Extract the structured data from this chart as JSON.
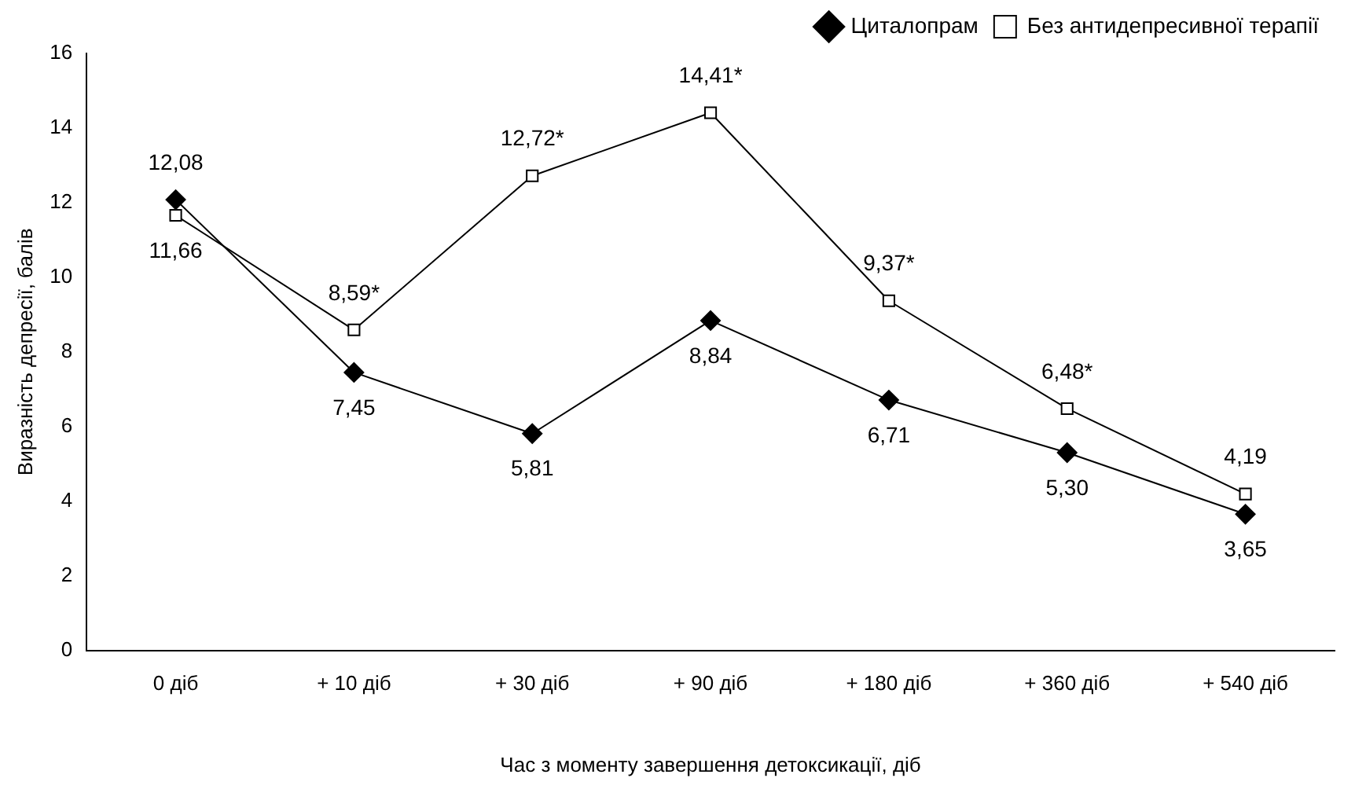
{
  "chart_data": {
    "type": "line",
    "xlabel": "Час з моменту завершення детоксикації, діб",
    "ylabel": "Виразність депресії, балів",
    "categories": [
      "0 діб",
      "+ 10 діб",
      "+ 30 діб",
      "+ 90 діб",
      "+ 180 діб",
      "+ 360 діб",
      "+ 540 діб"
    ],
    "series": [
      {
        "name": "Циталопрам",
        "color": "#000000",
        "marker": "diamond",
        "values": [
          12.08,
          7.45,
          5.81,
          8.84,
          6.71,
          5.3,
          3.65
        ],
        "value_labels": [
          "12,08",
          "7,45",
          "5,81",
          "8,84",
          "6,71",
          "5,30",
          "3,65"
        ]
      },
      {
        "name": "Без антидепресивної терапії",
        "color": "#000000",
        "marker": "square",
        "values": [
          11.66,
          8.59,
          12.72,
          14.41,
          9.37,
          6.48,
          4.19
        ],
        "value_labels": [
          "11,66",
          "8,59*",
          "12,72*",
          "14,41*",
          "9,37*",
          "6,48*",
          "4,19"
        ]
      }
    ],
    "ylim": [
      0,
      16
    ],
    "yticks": [
      0,
      2,
      4,
      6,
      8,
      10,
      12,
      14,
      16
    ],
    "grid": false,
    "legend": "top right",
    "line_style": "solid"
  }
}
